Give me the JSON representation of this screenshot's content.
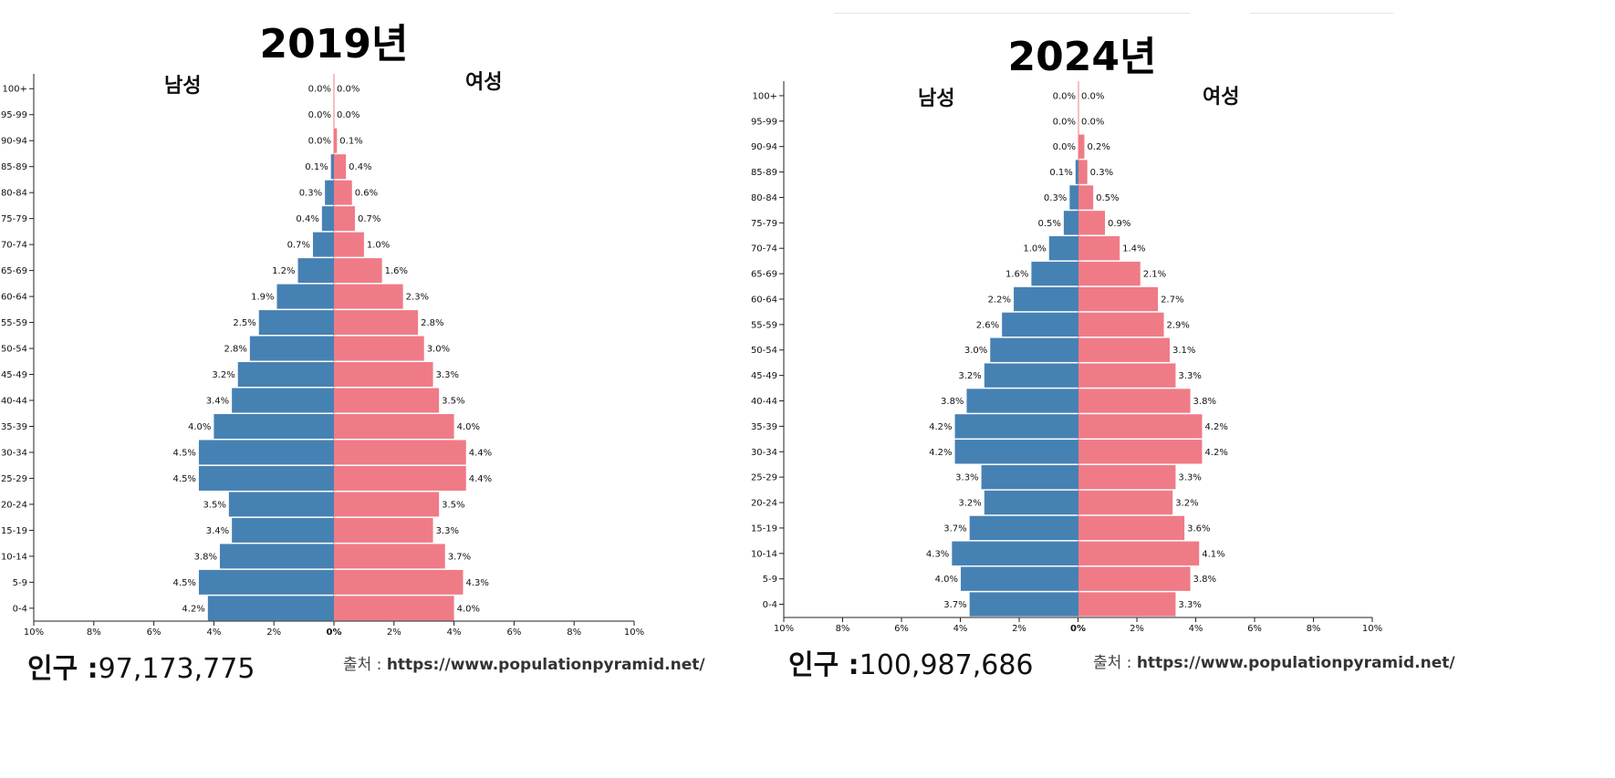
{
  "source_label": "출처 :",
  "source_url": "https://www.populationpyramid.net/",
  "population_label": "인구 :",
  "chart_data": [
    {
      "type": "bar",
      "subtype": "population-pyramid",
      "title": "2019년",
      "male_label": "남성",
      "female_label": "여성",
      "population": "97,173,775",
      "xlim": [
        -10,
        10
      ],
      "x_ticks": [
        "10%",
        "8%",
        "6%",
        "4%",
        "2%",
        "0%",
        "2%",
        "4%",
        "6%",
        "8%",
        "10%"
      ],
      "categories": [
        "100+",
        "95-99",
        "90-94",
        "85-89",
        "80-84",
        "75-79",
        "70-74",
        "65-69",
        "60-64",
        "55-59",
        "50-54",
        "45-49",
        "40-44",
        "35-39",
        "30-34",
        "25-29",
        "20-24",
        "15-19",
        "10-14",
        "5-9",
        "0-4"
      ],
      "series": [
        {
          "name": "남성",
          "color": "#4681b4",
          "values": [
            0.0,
            0.0,
            0.0,
            0.1,
            0.3,
            0.4,
            0.7,
            1.2,
            1.9,
            2.5,
            2.8,
            3.2,
            3.4,
            4.0,
            4.5,
            4.5,
            3.5,
            3.4,
            3.8,
            4.5,
            4.2
          ]
        },
        {
          "name": "여성",
          "color": "#ef7b87",
          "values": [
            0.0,
            0.0,
            0.1,
            0.4,
            0.6,
            0.7,
            1.0,
            1.6,
            2.3,
            2.8,
            3.0,
            3.3,
            3.5,
            4.0,
            4.4,
            4.4,
            3.5,
            3.3,
            3.7,
            4.3,
            4.0
          ]
        }
      ]
    },
    {
      "type": "bar",
      "subtype": "population-pyramid",
      "title": "2024년",
      "male_label": "남성",
      "female_label": "여성",
      "population": "100,987,686",
      "xlim": [
        -10,
        10
      ],
      "x_ticks": [
        "10%",
        "8%",
        "6%",
        "4%",
        "2%",
        "0%",
        "2%",
        "4%",
        "6%",
        "8%",
        "10%"
      ],
      "categories": [
        "100+",
        "95-99",
        "90-94",
        "85-89",
        "80-84",
        "75-79",
        "70-74",
        "65-69",
        "60-64",
        "55-59",
        "50-54",
        "45-49",
        "40-44",
        "35-39",
        "30-34",
        "25-29",
        "20-24",
        "15-19",
        "10-14",
        "5-9",
        "0-4"
      ],
      "series": [
        {
          "name": "남성",
          "color": "#4681b4",
          "values": [
            0.0,
            0.0,
            0.0,
            0.1,
            0.3,
            0.5,
            1.0,
            1.6,
            2.2,
            2.6,
            3.0,
            3.2,
            3.8,
            4.2,
            4.2,
            3.3,
            3.2,
            3.7,
            4.3,
            4.0,
            3.7
          ]
        },
        {
          "name": "여성",
          "color": "#ef7b87",
          "values": [
            0.0,
            0.0,
            0.2,
            0.3,
            0.5,
            0.9,
            1.4,
            2.1,
            2.7,
            2.9,
            3.1,
            3.3,
            3.8,
            4.2,
            4.2,
            3.3,
            3.2,
            3.6,
            4.1,
            3.8,
            3.3
          ]
        }
      ]
    }
  ]
}
